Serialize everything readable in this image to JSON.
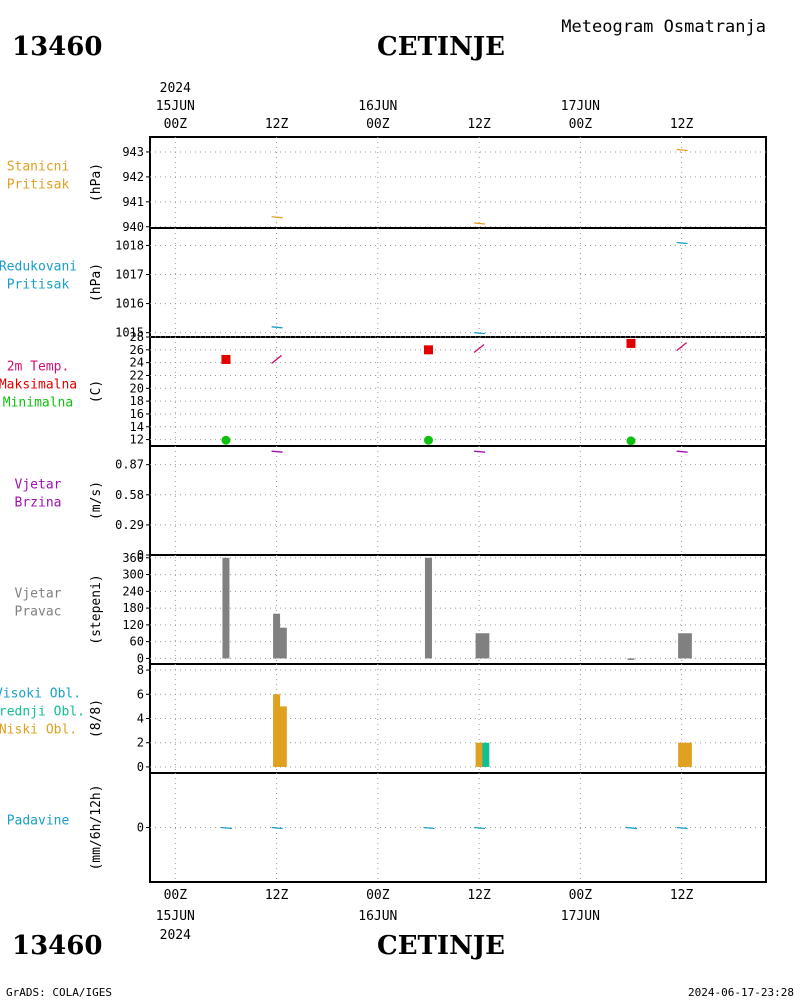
{
  "header": {
    "station_id": "13460",
    "station_name": "CETINJE",
    "subtitle": "Meteogram Osmatranja",
    "footer_left": "GrADS: COLA/IGES",
    "footer_right": "2024-06-17-23:28"
  },
  "time_axis": {
    "year": "2024",
    "ticks": [
      {
        "hour": 0,
        "label": "00Z",
        "date": "15JUN",
        "year": "2024"
      },
      {
        "hour": 12,
        "label": "12Z"
      },
      {
        "hour": 24,
        "label": "00Z",
        "date": "16JUN"
      },
      {
        "hour": 36,
        "label": "12Z"
      },
      {
        "hour": 48,
        "label": "00Z",
        "date": "17JUN"
      },
      {
        "hour": 60,
        "label": "12Z"
      }
    ],
    "range_hours": [
      -3,
      70
    ]
  },
  "colors": {
    "orange": "#e0a020",
    "blue": "#1aa0c8",
    "magenta": "#d01070",
    "red": "#e00000",
    "green": "#10c010",
    "purple": "#a010b0",
    "gray": "#808080",
    "teal": "#10c090"
  },
  "chart_data": [
    {
      "type": "line",
      "panel": "pressure",
      "labels": [
        "Stanicni",
        "Pritisak"
      ],
      "ylabel": "(hPa)",
      "ylim": [
        939.95,
        943.6
      ],
      "yticks": [
        940,
        941,
        942,
        943
      ],
      "series": [
        {
          "color_key": "orange",
          "points": [
            [
              12,
              940.4
            ],
            [
              36,
              940.15
            ],
            [
              60,
              943.1
            ]
          ]
        }
      ]
    },
    {
      "type": "line",
      "panel": "reduced-pressure",
      "labels": [
        "Redukovani",
        "Pritisak"
      ],
      "ylabel": "(hPa)",
      "ylim": [
        1014.85,
        1018.6
      ],
      "yticks": [
        1015,
        1016,
        1017,
        1018
      ],
      "series": [
        {
          "color_key": "blue",
          "points": [
            [
              12,
              1015.2
            ],
            [
              36,
              1015.0
            ],
            [
              60,
              1018.1
            ]
          ]
        }
      ]
    },
    {
      "type": "scatter",
      "panel": "temperature",
      "labels": [
        "2m Temp.",
        "Maksimalna",
        "Minimalna"
      ],
      "label_color_keys": [
        "magenta",
        "red",
        "green"
      ],
      "ylabel": "(C)",
      "ylim": [
        11,
        28
      ],
      "yticks": [
        12,
        14,
        16,
        18,
        20,
        22,
        24,
        26,
        28
      ],
      "series": [
        {
          "kind": "temp",
          "color_key": "magenta",
          "points": [
            [
              12,
              24.5
            ],
            [
              36,
              26.2
            ],
            [
              60,
              26.5
            ]
          ]
        },
        {
          "kind": "max",
          "color_key": "red",
          "points": [
            [
              6,
              24.5
            ],
            [
              30,
              26.0
            ],
            [
              54,
              27.0
            ]
          ]
        },
        {
          "kind": "min",
          "color_key": "green",
          "points": [
            [
              6,
              11.9
            ],
            [
              30,
              11.9
            ],
            [
              54,
              11.8
            ]
          ]
        }
      ]
    },
    {
      "type": "line",
      "panel": "wind-speed",
      "labels": [
        "Vjetar",
        "Brzina"
      ],
      "ylabel": "(m/s)",
      "ylim": [
        0,
        1.05
      ],
      "yticks": [
        0,
        0.29,
        0.58,
        0.87
      ],
      "series": [
        {
          "color_key": "purple",
          "points": [
            [
              12,
              1.0
            ],
            [
              36,
              1.0
            ],
            [
              60,
              1.0
            ]
          ]
        }
      ]
    },
    {
      "type": "bar",
      "panel": "wind-direction",
      "labels": [
        "Vjetar",
        "Pravac"
      ],
      "ylabel": "(stepeni)",
      "ylim": [
        -20,
        370
      ],
      "yticks": [
        0,
        60,
        120,
        180,
        240,
        300,
        360
      ],
      "series": [
        {
          "color_key": "gray",
          "points": [
            [
              6,
              360
            ],
            [
              12,
              160
            ],
            [
              12.8,
              110
            ],
            [
              30,
              360
            ],
            [
              36,
              90
            ],
            [
              36.8,
              90
            ],
            [
              54,
              0
            ],
            [
              60,
              90
            ],
            [
              60.8,
              90
            ]
          ]
        }
      ]
    },
    {
      "type": "bar",
      "panel": "clouds",
      "labels": [
        "Visoki Obl.",
        "Srednji Obl.",
        "Niski Obl."
      ],
      "label_color_keys": [
        "blue",
        "teal",
        "orange"
      ],
      "ylabel": "(8/8)",
      "ylim": [
        -0.5,
        8.5
      ],
      "yticks": [
        0,
        2,
        4,
        6,
        8
      ],
      "series": [
        {
          "name": "Niski Obl.",
          "color_key": "orange",
          "points": [
            [
              12,
              6
            ],
            [
              12.8,
              5
            ],
            [
              36,
              2
            ],
            [
              60,
              2
            ],
            [
              60.8,
              2
            ]
          ]
        },
        {
          "name": "Srednji Obl.",
          "color_key": "teal",
          "points": [
            [
              36.8,
              2
            ]
          ]
        }
      ]
    },
    {
      "type": "line",
      "panel": "precipitation",
      "labels": [
        "Padavine"
      ],
      "ylabel": "(mm/6h/12h)",
      "ylim": [
        -5,
        5
      ],
      "yticks": [
        0
      ],
      "series": [
        {
          "color_key": "blue",
          "points": [
            [
              6,
              0
            ],
            [
              12,
              0
            ],
            [
              30,
              0
            ],
            [
              36,
              0
            ],
            [
              54,
              0
            ],
            [
              60,
              0
            ]
          ]
        }
      ]
    }
  ]
}
